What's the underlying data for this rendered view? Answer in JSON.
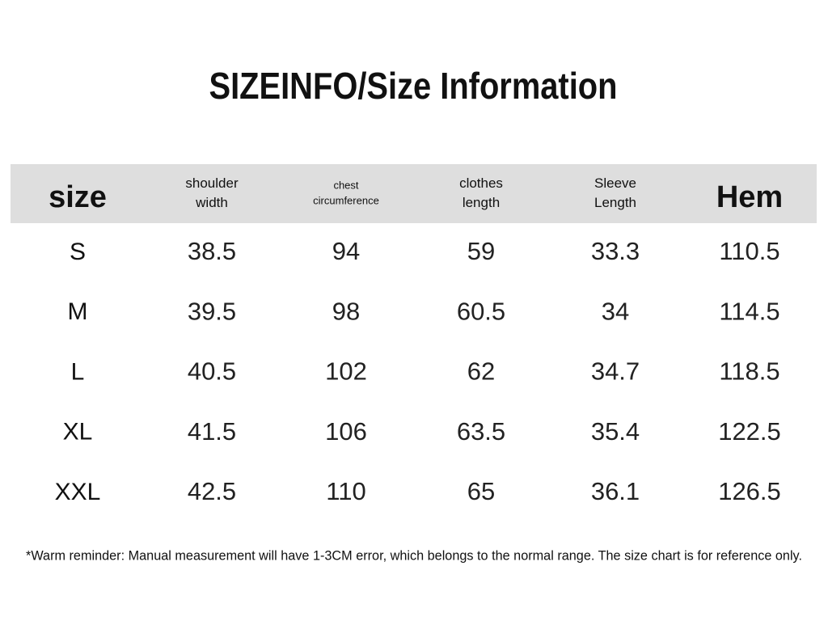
{
  "title": "SIZEINFO/Size Information",
  "table": {
    "header": [
      "size",
      "shoulder width",
      "chest circumference",
      "clothes length",
      "Sleeve Length",
      "Hem"
    ],
    "rows": [
      [
        "S",
        "38.5",
        "94",
        "59",
        "33.3",
        "110.5"
      ],
      [
        "M",
        "39.5",
        "98",
        "60.5",
        "34",
        "114.5"
      ],
      [
        "L",
        "40.5",
        "102",
        "62",
        "34.7",
        "118.5"
      ],
      [
        "XL",
        "41.5",
        "106",
        "63.5",
        "35.4",
        "122.5"
      ],
      [
        "XXL",
        "42.5",
        "110",
        "65",
        "36.1",
        "126.5"
      ]
    ]
  },
  "footnote": "*Warm reminder: Manual measurement will have 1-3CM error, which belongs to the normal range. The size chart is for reference only."
}
